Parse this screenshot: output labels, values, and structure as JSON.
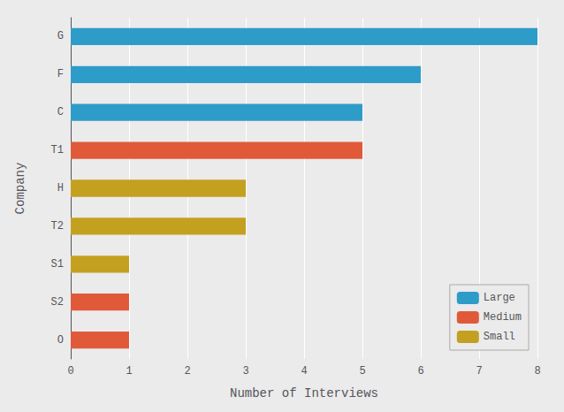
{
  "chart_data": {
    "type": "bar",
    "orientation": "horizontal",
    "xlabel": "Number of Interviews",
    "ylabel": "Company",
    "categories": [
      "G",
      "F",
      "C",
      "T1",
      "H",
      "T2",
      "S1",
      "S2",
      "O"
    ],
    "series": [
      {
        "name": "Large",
        "color": "#2e9cc8",
        "values": [
          8,
          6,
          5,
          null,
          null,
          null,
          null,
          null,
          null
        ]
      },
      {
        "name": "Medium",
        "color": "#e05a3a",
        "values": [
          null,
          null,
          null,
          5,
          null,
          null,
          null,
          1,
          1
        ]
      },
      {
        "name": "Small",
        "color": "#c4a020",
        "values": [
          null,
          null,
          null,
          null,
          3,
          3,
          1,
          null,
          null
        ]
      }
    ],
    "xlim": [
      0,
      8
    ],
    "xticks": [
      0,
      1,
      2,
      3,
      4,
      5,
      6,
      7,
      8
    ],
    "grid": true,
    "legend": "lower right"
  }
}
